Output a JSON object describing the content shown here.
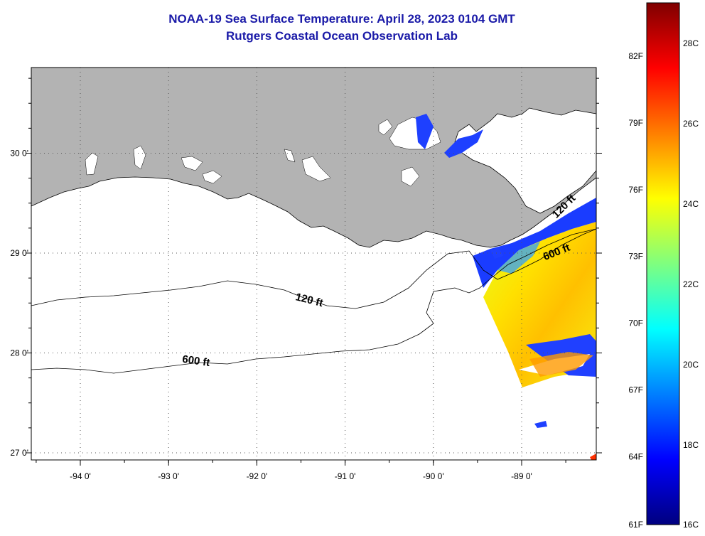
{
  "title": {
    "line1": "NOAA-19 Sea Surface Temperature:  April 28, 2023 0104 GMT",
    "line2": "Rutgers Coastal Ocean Observation Lab"
  },
  "map": {
    "lon_ticks": [
      "-94 0'",
      "-93 0'",
      "-92 0'",
      "-91 0'",
      "-90 0'",
      "-89 0'"
    ],
    "lat_ticks": [
      "30 0'",
      "29 0'",
      "28 0'",
      "27 0'"
    ],
    "contours": {
      "shelf_120": "120 ft",
      "slope_600_west": "600 ft",
      "contour_120_east": "120 ft",
      "contour_600_east": "600 ft"
    },
    "colors": {
      "land": "#b3b3b3",
      "water": "#ffffff",
      "graticule": "#555555"
    }
  },
  "colorbar": {
    "fahrenheit_labels": [
      "82F",
      "79F",
      "76F",
      "73F",
      "70F",
      "67F",
      "64F",
      "61F"
    ],
    "celsius_labels": [
      "28C",
      "26C",
      "24C",
      "22C",
      "20C",
      "18C",
      "16C"
    ],
    "colors": [
      "#00007f",
      "#0000ff",
      "#007fff",
      "#00ffff",
      "#7fff7f",
      "#ffff00",
      "#ff7f00",
      "#ff0000",
      "#7f0000"
    ]
  }
}
